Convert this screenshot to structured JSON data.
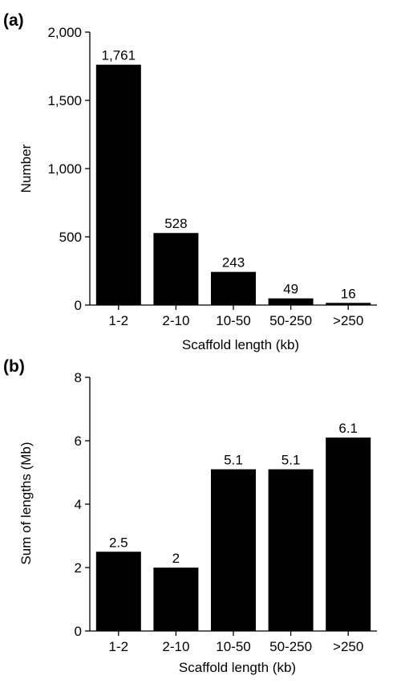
{
  "chart_data": [
    {
      "type": "bar",
      "panel_label": "(a)",
      "categories": [
        "1-2",
        "2-10",
        "10-50",
        "50-250",
        ">250"
      ],
      "values": [
        1761,
        528,
        243,
        49,
        16
      ],
      "value_labels": [
        "1,761",
        "528",
        "243",
        "49",
        "16"
      ],
      "title": "",
      "xlabel": "Scaffold length (kb)",
      "ylabel": "Number",
      "ylim": [
        0,
        2000
      ],
      "yticks": [
        0,
        500,
        1000,
        1500,
        2000
      ],
      "ytick_labels": [
        "0",
        "500",
        "1,000",
        "1,500",
        "2,000"
      ],
      "grid": false,
      "bar_color": "#000000"
    },
    {
      "type": "bar",
      "panel_label": "(b)",
      "categories": [
        "1-2",
        "2-10",
        "10-50",
        "50-250",
        ">250"
      ],
      "values": [
        2.5,
        2,
        5.1,
        5.1,
        6.1
      ],
      "value_labels": [
        "2.5",
        "2",
        "5.1",
        "5.1",
        "6.1"
      ],
      "title": "",
      "xlabel": "Scaffold length (kb)",
      "ylabel": "Sum of lengths (Mb)",
      "ylim": [
        0,
        8
      ],
      "yticks": [
        0,
        2,
        4,
        6,
        8
      ],
      "ytick_labels": [
        "0",
        "2",
        "4",
        "6",
        "8"
      ],
      "grid": false,
      "bar_color": "#000000"
    }
  ]
}
